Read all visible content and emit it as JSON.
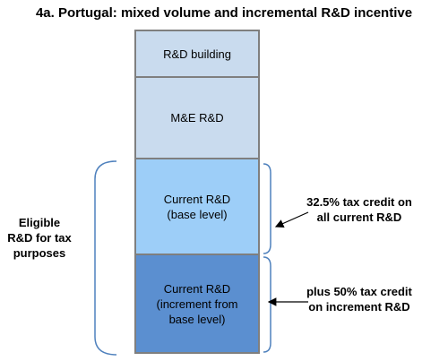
{
  "title": "4a. Portugal: mixed volume and incremental R&D incentive",
  "blocks": [
    {
      "label": "R&D building"
    },
    {
      "label": "M&E R&D"
    },
    {
      "label": "Current R&D\n(base level)"
    },
    {
      "label": "Current R&D\n(increment  from\nbase level)"
    }
  ],
  "left_label": "Eligible\nR&D for tax\npurposes",
  "notes": [
    {
      "text": "32.5% tax credit on\nall current R&D"
    },
    {
      "text": "plus 50% tax credit\non increment  R&D"
    }
  ],
  "colors": {
    "building": "#c9dbee",
    "me": "#c9dbee",
    "current_base": "#9dcef8",
    "current_increment": "#5b8fd0",
    "bracket": "#4f81bd",
    "border": "#7f7f7f"
  }
}
